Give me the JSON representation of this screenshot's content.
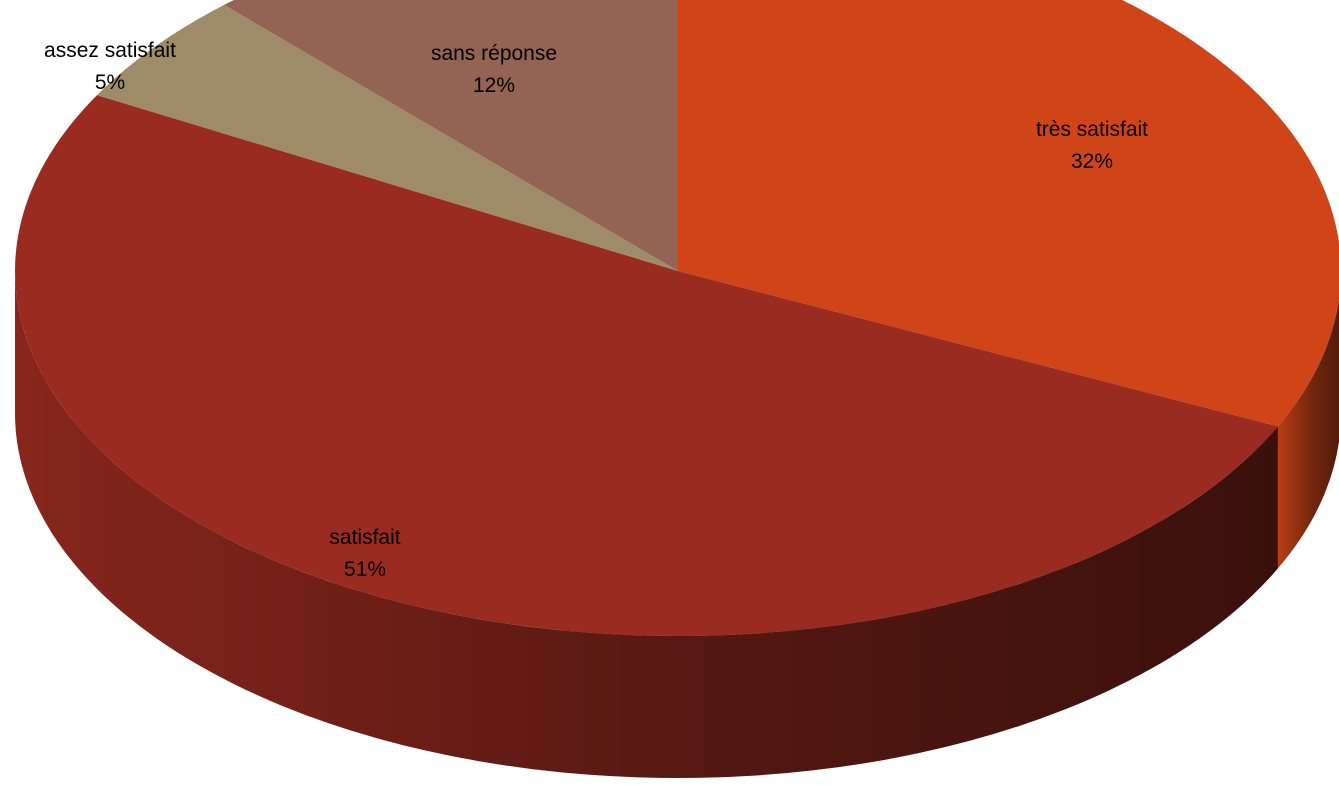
{
  "chart_data": {
    "type": "pie",
    "style": "3d",
    "slices": [
      {
        "label": "très satisfait",
        "value": 32,
        "display": "32%",
        "color": "#D04518"
      },
      {
        "label": "satisfait",
        "value": 51,
        "display": "51%",
        "color": "#992B20"
      },
      {
        "label": "assez satisfait",
        "value": 5,
        "display": "5%",
        "color": "#9E8B68"
      },
      {
        "label": "sans réponse",
        "value": 12,
        "display": "12%",
        "color": "#936353"
      }
    ],
    "start": "top",
    "direction": "clockwise",
    "legend": "none"
  }
}
